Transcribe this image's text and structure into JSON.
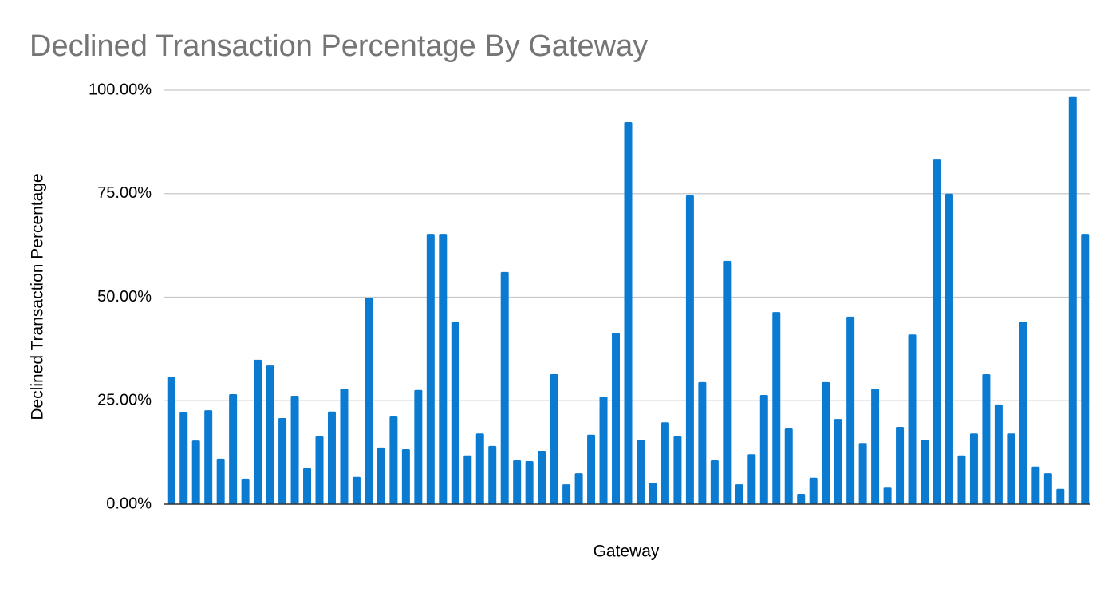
{
  "chart_data": {
    "type": "bar",
    "title": "Declined Transaction Percentage By Gateway",
    "x_label": "Gateway",
    "y_label": "Declined Transaction Percentage",
    "categories": [
      null,
      null,
      null,
      null,
      null,
      null,
      null,
      null,
      null,
      null,
      null,
      null,
      null,
      null,
      null,
      null,
      null,
      null,
      null,
      null,
      null,
      null,
      null,
      null,
      null,
      null,
      null,
      null,
      null,
      null,
      null,
      null,
      null,
      null,
      null,
      null,
      null,
      null,
      null,
      null,
      null,
      null,
      null,
      null,
      null,
      null,
      null,
      null,
      null,
      null,
      null,
      null,
      null,
      null,
      null,
      null,
      null,
      null,
      null,
      null,
      null,
      null,
      null,
      null,
      null,
      null,
      null,
      null,
      null,
      null,
      null,
      null,
      null,
      null,
      null
    ],
    "values": [
      30.8,
      22.2,
      15.4,
      22.7,
      11.0,
      26.6,
      6.2,
      34.9,
      33.5,
      20.8,
      26.2,
      8.7,
      16.4,
      22.4,
      27.9,
      6.6,
      49.9,
      13.7,
      21.2,
      13.3,
      27.6,
      65.3,
      65.3,
      44.1,
      11.8,
      17.1,
      14.1,
      56.1,
      10.6,
      10.4,
      12.9,
      31.4,
      4.8,
      7.5,
      16.8,
      26.0,
      41.4,
      92.3,
      15.6,
      5.2,
      19.8,
      16.4,
      74.6,
      29.5,
      10.6,
      58.8,
      4.8,
      12.1,
      26.4,
      46.4,
      18.3,
      2.5,
      6.4,
      29.5,
      20.6,
      45.3,
      14.8,
      27.9,
      4.0,
      18.7,
      41.0,
      15.6,
      83.4,
      75.0,
      11.8,
      17.1,
      31.4,
      24.1,
      17.1,
      44.1,
      9.1,
      7.5,
      3.7,
      98.5,
      65.3
    ],
    "color": "#0b7bd2",
    "ylim": [
      0,
      100
    ],
    "yticks": [
      {
        "value": 0,
        "label": "0.00%"
      },
      {
        "value": 25,
        "label": "25.00%"
      },
      {
        "value": 50,
        "label": "50.00%"
      },
      {
        "value": 75,
        "label": "75.00%"
      },
      {
        "value": 100,
        "label": "100.00%"
      }
    ],
    "grid": true
  }
}
